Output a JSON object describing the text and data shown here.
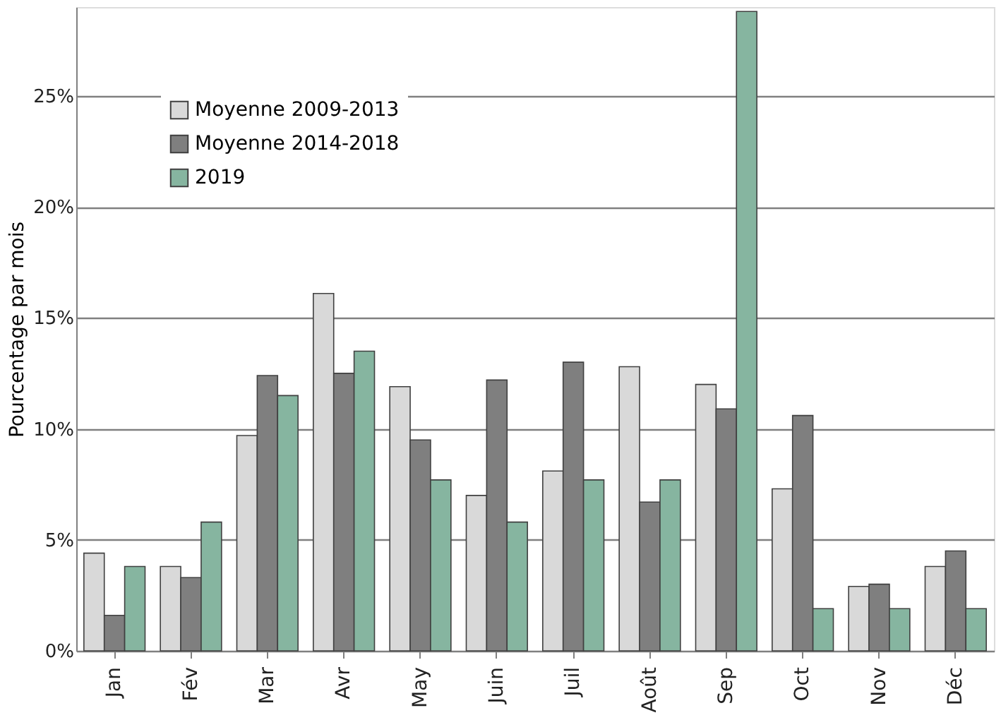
{
  "chart_data": {
    "type": "bar",
    "ylabel": "Pourcentage par mois",
    "categories": [
      "Jan",
      "Fév",
      "Mar",
      "Avr",
      "May",
      "Juin",
      "Juil",
      "Août",
      "Sep",
      "Oct",
      "Nov",
      "Déc"
    ],
    "series": [
      {
        "name": "Moyenne 2009-2013",
        "color": "#d9d9d9",
        "values": [
          4.4,
          3.8,
          9.7,
          16.1,
          11.9,
          7.0,
          8.1,
          12.8,
          12.0,
          7.3,
          2.9,
          3.8
        ]
      },
      {
        "name": "Moyenne 2014-2018",
        "color": "#7f7f7f",
        "values": [
          1.6,
          3.3,
          12.4,
          12.5,
          9.5,
          12.2,
          13.0,
          6.7,
          10.9,
          10.6,
          3.0,
          4.5
        ]
      },
      {
        "name": "2019",
        "color": "#86b5a0",
        "values": [
          3.8,
          5.8,
          11.5,
          13.5,
          7.7,
          5.8,
          7.7,
          7.7,
          28.8,
          1.9,
          1.9,
          1.9
        ]
      }
    ],
    "ylim": [
      0,
      29
    ],
    "yticks": [
      {
        "value": 0,
        "label": "0%"
      },
      {
        "value": 5,
        "label": "5%"
      },
      {
        "value": 10,
        "label": "10%"
      },
      {
        "value": 15,
        "label": "15%"
      },
      {
        "value": 20,
        "label": "20%"
      },
      {
        "value": 25,
        "label": "25%"
      }
    ],
    "grid": "y",
    "legend": "top left"
  }
}
